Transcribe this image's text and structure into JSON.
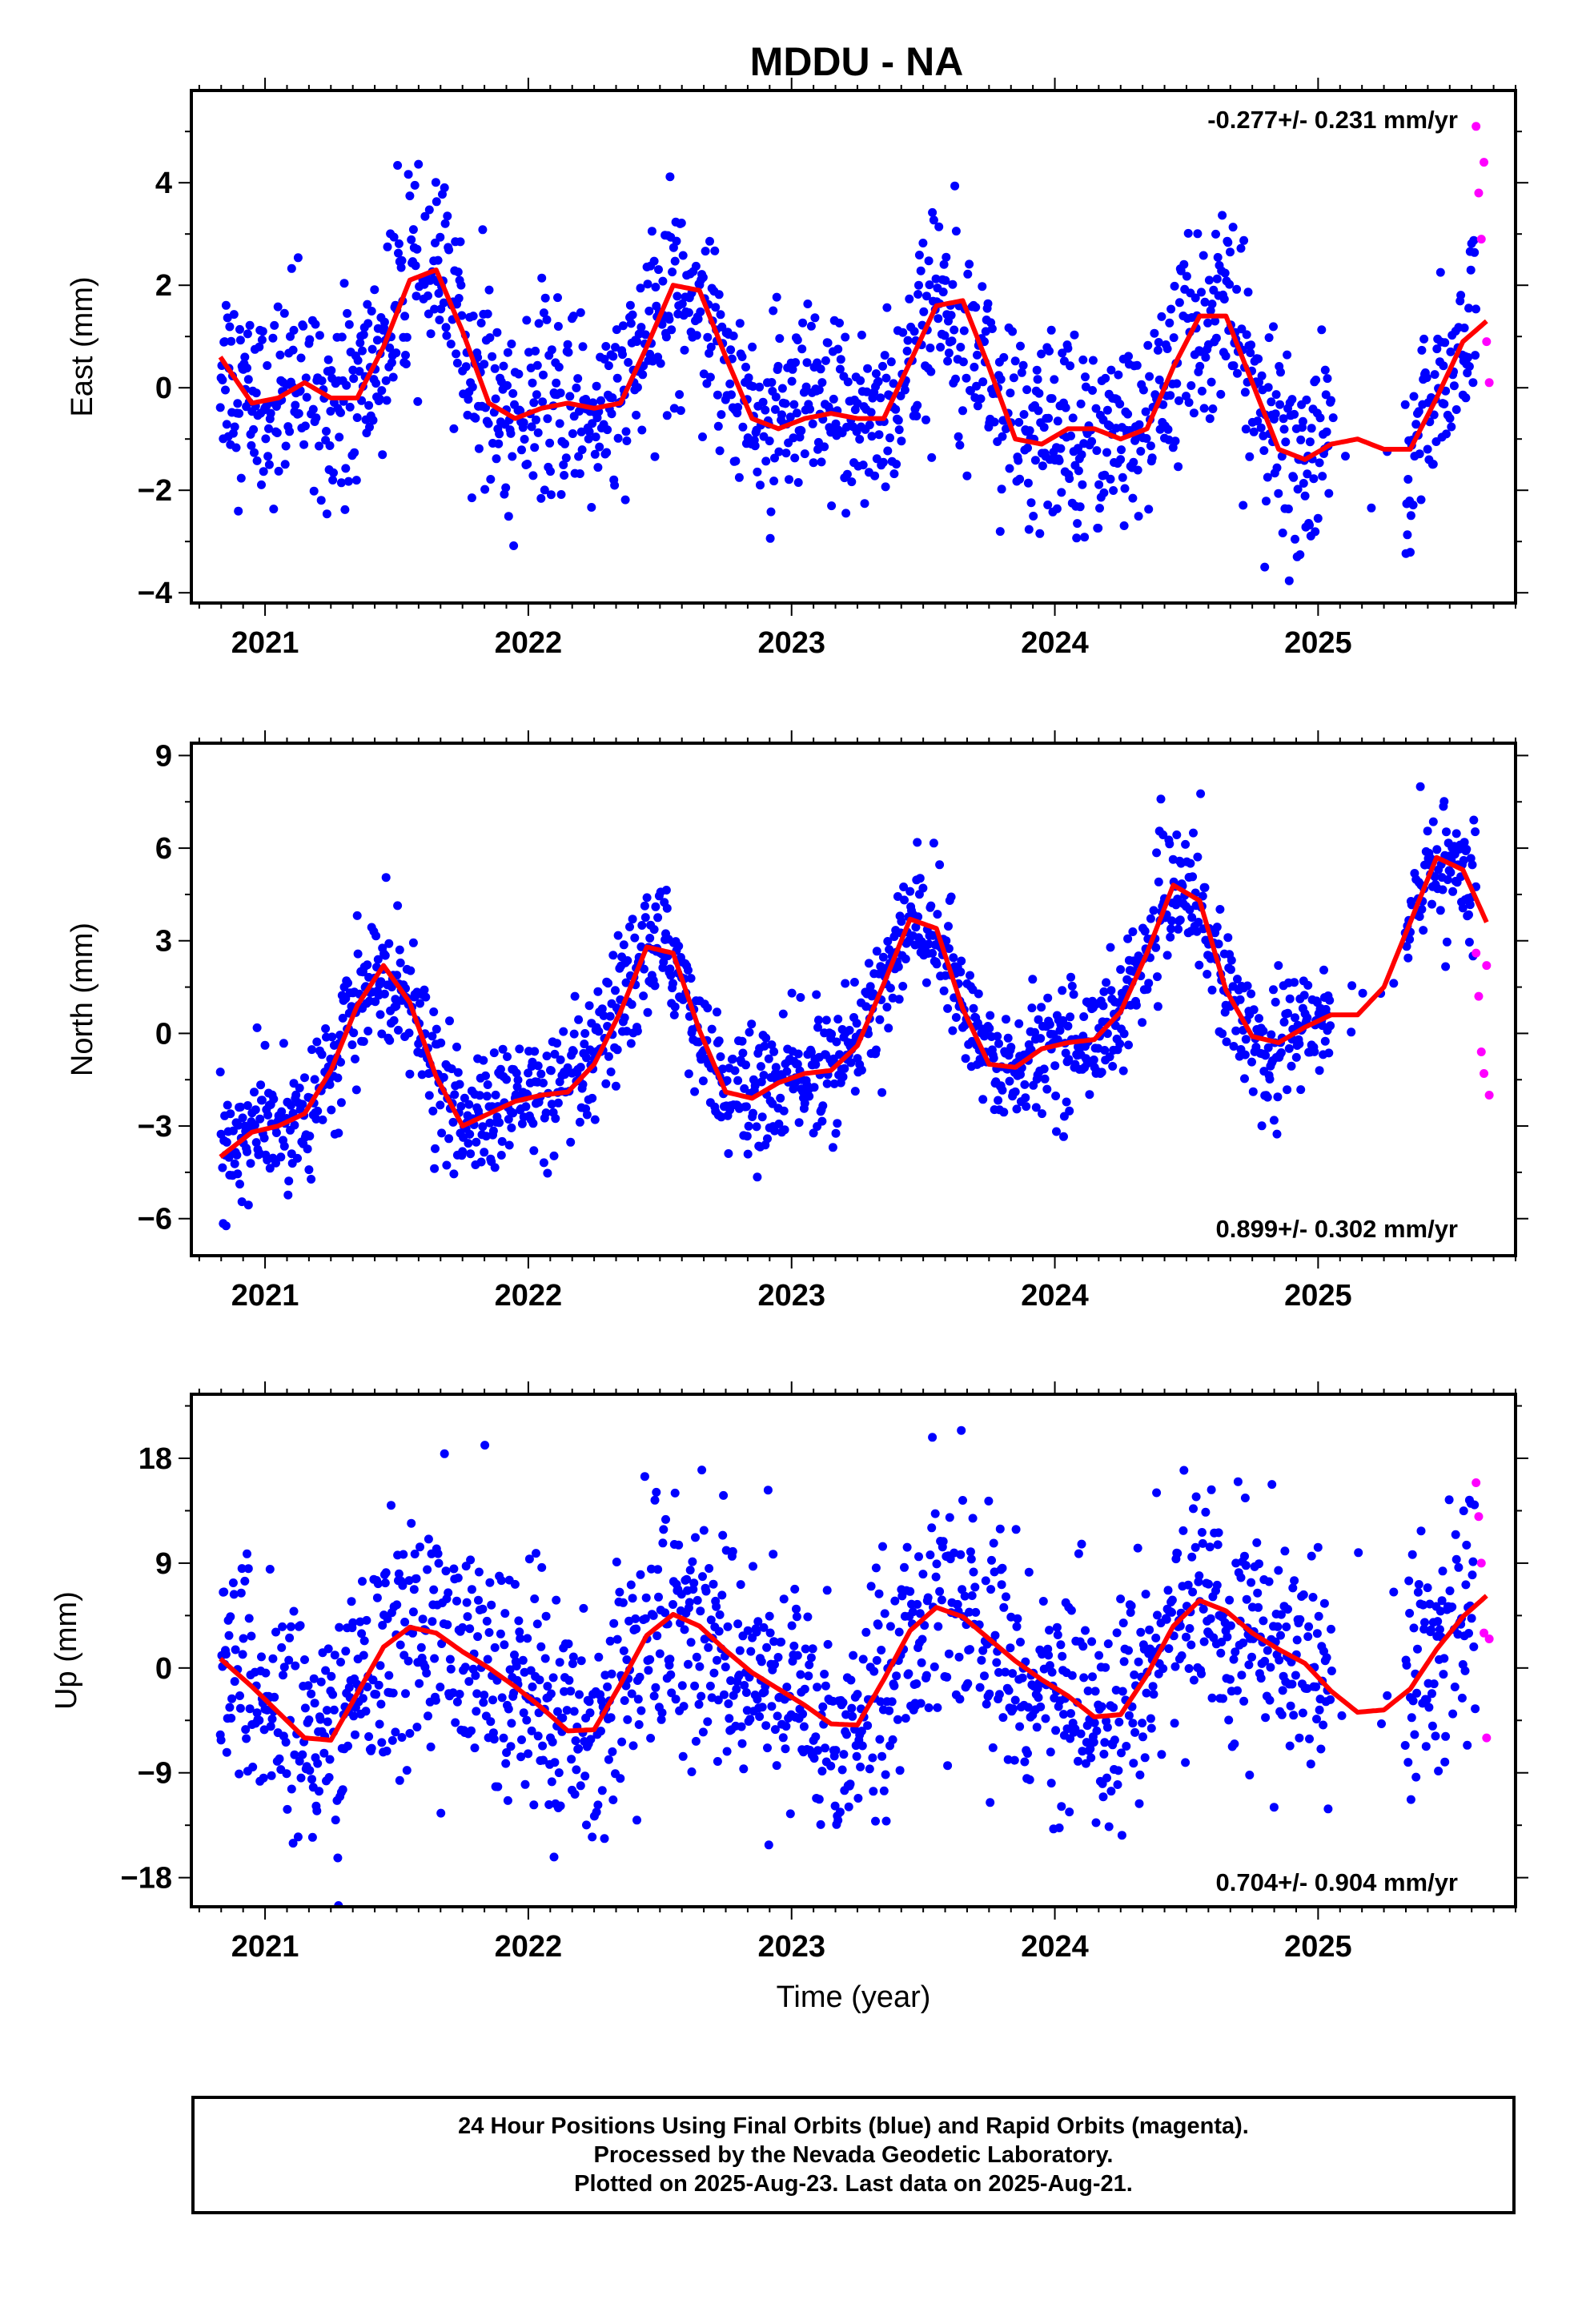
{
  "title": "MDDU - NA",
  "xlabel": "Time (year)",
  "footer": {
    "line1": "24 Hour Positions Using Final Orbits (blue) and Rapid Orbits (magenta).",
    "line2": "Processed by the Nevada Geodetic Laboratory.",
    "line3": "Plotted on 2025-Aug-23. Last data on 2025-Aug-21."
  },
  "colors": {
    "final_orbits": "#0000ff",
    "rapid_orbits": "#ff00ff",
    "model_fit": "#ff0000",
    "axis": "#000000"
  },
  "chart_data": [
    {
      "type": "scatter",
      "component": "East",
      "ylabel": "East (mm)",
      "rate_label": "-0.277+/- 0.231 mm/yr",
      "rate": -0.277,
      "rate_sigma": 0.231,
      "xlim": [
        2020.72,
        2025.75
      ],
      "ylim": [
        -4.2,
        5.8
      ],
      "yticks": [
        -4,
        -2,
        0,
        2,
        4
      ],
      "xticks": [
        2021,
        2022,
        2023,
        2024,
        2025
      ],
      "series": [
        {
          "points": "final_orbits",
          "x_range": [
            2020.83,
            2025.6
          ]
        },
        {
          "points": "rapid_orbits",
          "x": [
            2025.6,
            2025.61,
            2025.62,
            2025.63,
            2025.64,
            2025.65
          ],
          "y": [
            5.1,
            3.8,
            2.9,
            4.4,
            0.9,
            0.1
          ]
        }
      ],
      "fit_curve": {
        "x": [
          2020.83,
          2020.95,
          2021.05,
          2021.15,
          2021.25,
          2021.35,
          2021.45,
          2021.55,
          2021.65,
          2021.75,
          2021.85,
          2021.95,
          2022.05,
          2022.15,
          2022.25,
          2022.35,
          2022.45,
          2022.55,
          2022.65,
          2022.75,
          2022.85,
          2022.95,
          2023.05,
          2023.15,
          2023.25,
          2023.35,
          2023.45,
          2023.55,
          2023.65,
          2023.75,
          2023.85,
          2023.95,
          2024.05,
          2024.15,
          2024.25,
          2024.35,
          2024.45,
          2024.55,
          2024.65,
          2024.75,
          2024.85,
          2024.95,
          2025.05,
          2025.15,
          2025.25,
          2025.35,
          2025.45,
          2025.55,
          2025.64
        ],
        "y": [
          0.6,
          -0.3,
          -0.2,
          0.1,
          -0.2,
          -0.2,
          0.8,
          2.1,
          2.3,
          1.1,
          -0.3,
          -0.6,
          -0.4,
          -0.3,
          -0.4,
          -0.3,
          0.8,
          2.0,
          1.9,
          0.6,
          -0.6,
          -0.8,
          -0.6,
          -0.5,
          -0.6,
          -0.6,
          0.5,
          1.6,
          1.7,
          0.4,
          -1.0,
          -1.1,
          -0.8,
          -0.8,
          -1.0,
          -0.8,
          0.4,
          1.4,
          1.4,
          0.1,
          -1.2,
          -1.4,
          -1.1,
          -1.0,
          -1.2,
          -1.2,
          -0.2,
          0.9,
          1.3
        ]
      },
      "noise_sd": 0.95
    },
    {
      "type": "scatter",
      "component": "North",
      "ylabel": "North (mm)",
      "rate_label": "0.899+/- 0.302 mm/yr",
      "rate": 0.899,
      "rate_sigma": 0.302,
      "xlim": [
        2020.72,
        2025.75
      ],
      "ylim": [
        -7.2,
        9.4
      ],
      "yticks": [
        -6,
        -3,
        0,
        3,
        6,
        9
      ],
      "xticks": [
        2021,
        2022,
        2023,
        2024,
        2025
      ],
      "series": [
        {
          "points": "final_orbits",
          "x_range": [
            2020.83,
            2025.6
          ]
        },
        {
          "points": "rapid_orbits",
          "x": [
            2025.6,
            2025.61,
            2025.62,
            2025.63,
            2025.64,
            2025.65
          ],
          "y": [
            2.6,
            1.2,
            -0.6,
            -1.3,
            2.2,
            -2.0
          ]
        }
      ],
      "fit_curve": {
        "x": [
          2020.83,
          2020.95,
          2021.05,
          2021.15,
          2021.25,
          2021.35,
          2021.45,
          2021.55,
          2021.65,
          2021.75,
          2021.85,
          2021.95,
          2022.05,
          2022.15,
          2022.25,
          2022.35,
          2022.45,
          2022.55,
          2022.65,
          2022.75,
          2022.85,
          2022.95,
          2023.05,
          2023.15,
          2023.25,
          2023.35,
          2023.45,
          2023.55,
          2023.65,
          2023.75,
          2023.85,
          2023.95,
          2024.05,
          2024.15,
          2024.25,
          2024.35,
          2024.45,
          2024.55,
          2024.65,
          2024.75,
          2024.85,
          2024.95,
          2025.05,
          2025.15,
          2025.25,
          2025.35,
          2025.45,
          2025.55,
          2025.64
        ],
        "y": [
          -4.0,
          -3.2,
          -3.0,
          -2.6,
          -1.2,
          0.9,
          2.2,
          1.0,
          -1.4,
          -3.0,
          -2.6,
          -2.2,
          -2.0,
          -1.9,
          -1.0,
          0.7,
          2.8,
          2.6,
          0.1,
          -1.9,
          -2.1,
          -1.6,
          -1.3,
          -1.2,
          -0.4,
          1.6,
          3.7,
          3.4,
          0.8,
          -1.0,
          -1.1,
          -0.5,
          -0.3,
          -0.2,
          0.7,
          2.6,
          4.8,
          4.3,
          1.4,
          -0.1,
          -0.3,
          0.2,
          0.6,
          0.6,
          1.5,
          3.6,
          5.7,
          5.3,
          3.6
        ]
      },
      "noise_sd": 1.0
    },
    {
      "type": "scatter",
      "component": "Up",
      "ylabel": "Up (mm)",
      "rate_label": "0.704+/- 0.904 mm/yr",
      "rate": 0.704,
      "rate_sigma": 0.904,
      "xlim": [
        2020.72,
        2025.75
      ],
      "ylim": [
        -20.5,
        23.5
      ],
      "yticks": [
        -18,
        -9,
        0,
        9,
        18
      ],
      "xticks": [
        2021,
        2022,
        2023,
        2024,
        2025
      ],
      "series": [
        {
          "points": "final_orbits",
          "x_range": [
            2020.83,
            2025.6
          ]
        },
        {
          "points": "rapid_orbits",
          "x": [
            2025.6,
            2025.61,
            2025.62,
            2025.63,
            2025.64,
            2025.65
          ],
          "y": [
            15.9,
            13.0,
            9.0,
            3.0,
            -6.0,
            2.5
          ]
        }
      ],
      "fit_curve": {
        "x": [
          2020.83,
          2020.95,
          2021.05,
          2021.15,
          2021.25,
          2021.35,
          2021.45,
          2021.55,
          2021.65,
          2021.75,
          2021.85,
          2021.95,
          2022.05,
          2022.15,
          2022.25,
          2022.35,
          2022.45,
          2022.55,
          2022.65,
          2022.75,
          2022.85,
          2022.95,
          2023.05,
          2023.15,
          2023.25,
          2023.35,
          2023.45,
          2023.55,
          2023.65,
          2023.75,
          2023.85,
          2023.95,
          2024.05,
          2024.15,
          2024.25,
          2024.35,
          2024.45,
          2024.55,
          2024.65,
          2024.75,
          2024.85,
          2024.95,
          2025.05,
          2025.15,
          2025.25,
          2025.35,
          2025.45,
          2025.55,
          2025.64
        ],
        "y": [
          0.8,
          -1.6,
          -3.8,
          -6.0,
          -6.2,
          -2.2,
          1.8,
          3.5,
          3.0,
          1.4,
          0.0,
          -1.6,
          -3.4,
          -5.4,
          -5.3,
          -1.4,
          2.8,
          4.6,
          3.6,
          1.5,
          -0.4,
          -1.8,
          -3.2,
          -4.8,
          -4.9,
          -1.0,
          3.2,
          5.2,
          4.4,
          2.5,
          0.6,
          -1.0,
          -2.4,
          -4.2,
          -4.0,
          -0.6,
          3.6,
          5.8,
          4.9,
          3.0,
          1.6,
          0.4,
          -2.0,
          -3.8,
          -3.6,
          -1.8,
          1.6,
          4.4,
          6.2
        ]
      },
      "noise_sd": 5.0
    }
  ]
}
